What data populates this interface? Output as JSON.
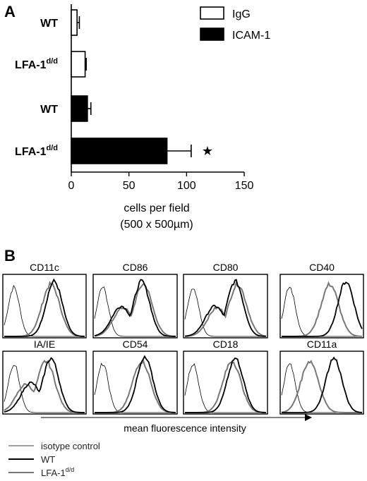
{
  "chart_data": [
    {
      "panel": "A",
      "type": "bar",
      "orientation": "horizontal",
      "categories": [
        "WT",
        "LFA-1",
        "WT",
        "LFA-1"
      ],
      "category_superscripts": [
        "",
        "d/d",
        "",
        "d/d"
      ],
      "series": [
        {
          "name": "IgG",
          "color": "#ffffff",
          "values": [
            5,
            12,
            null,
            null
          ],
          "errors": [
            2,
            1,
            null,
            null
          ]
        },
        {
          "name": "ICAM-1",
          "color": "#000000",
          "values": [
            null,
            null,
            14,
            83
          ],
          "errors": [
            null,
            null,
            3,
            21
          ]
        }
      ],
      "significance_marker": "★",
      "significance_row": 3,
      "xlabel": "cells per field",
      "xlabel_line2": "(500 x 500µm)",
      "xlim": [
        0,
        150
      ],
      "xticks": [
        "0",
        "50",
        "100",
        "150"
      ],
      "legend_position": "top-right",
      "grid": false
    },
    {
      "panel": "B",
      "type": "line",
      "subtype": "histogram-overlays",
      "markers": [
        "CD11c",
        "CD86",
        "CD80",
        "CD40",
        "IA/IE",
        "CD54",
        "CD18",
        "CD11a"
      ],
      "series_legend": [
        {
          "name": "isotype control",
          "color": "#000000",
          "weight": "thin"
        },
        {
          "name": "WT",
          "color": "#000000",
          "weight": "thick"
        },
        {
          "name": "LFA-1",
          "superscript": "d/d",
          "color": "#777777",
          "weight": "thick"
        }
      ],
      "xlabel": "mean fluorescence intensity",
      "x_range": [
        0,
        1
      ],
      "peak_positions": {
        "isotype": [
          0.12,
          0.1,
          0.1,
          0.1,
          0.12,
          0.1,
          0.1,
          0.1
        ],
        "wt": [
          0.62,
          0.58,
          0.62,
          0.8,
          0.58,
          0.62,
          0.62,
          0.65
        ],
        "lfa": [
          0.58,
          0.6,
          0.65,
          0.6,
          0.52,
          0.58,
          0.58,
          0.35
        ]
      }
    }
  ],
  "panel_labels": {
    "a": "A",
    "b": "B"
  }
}
